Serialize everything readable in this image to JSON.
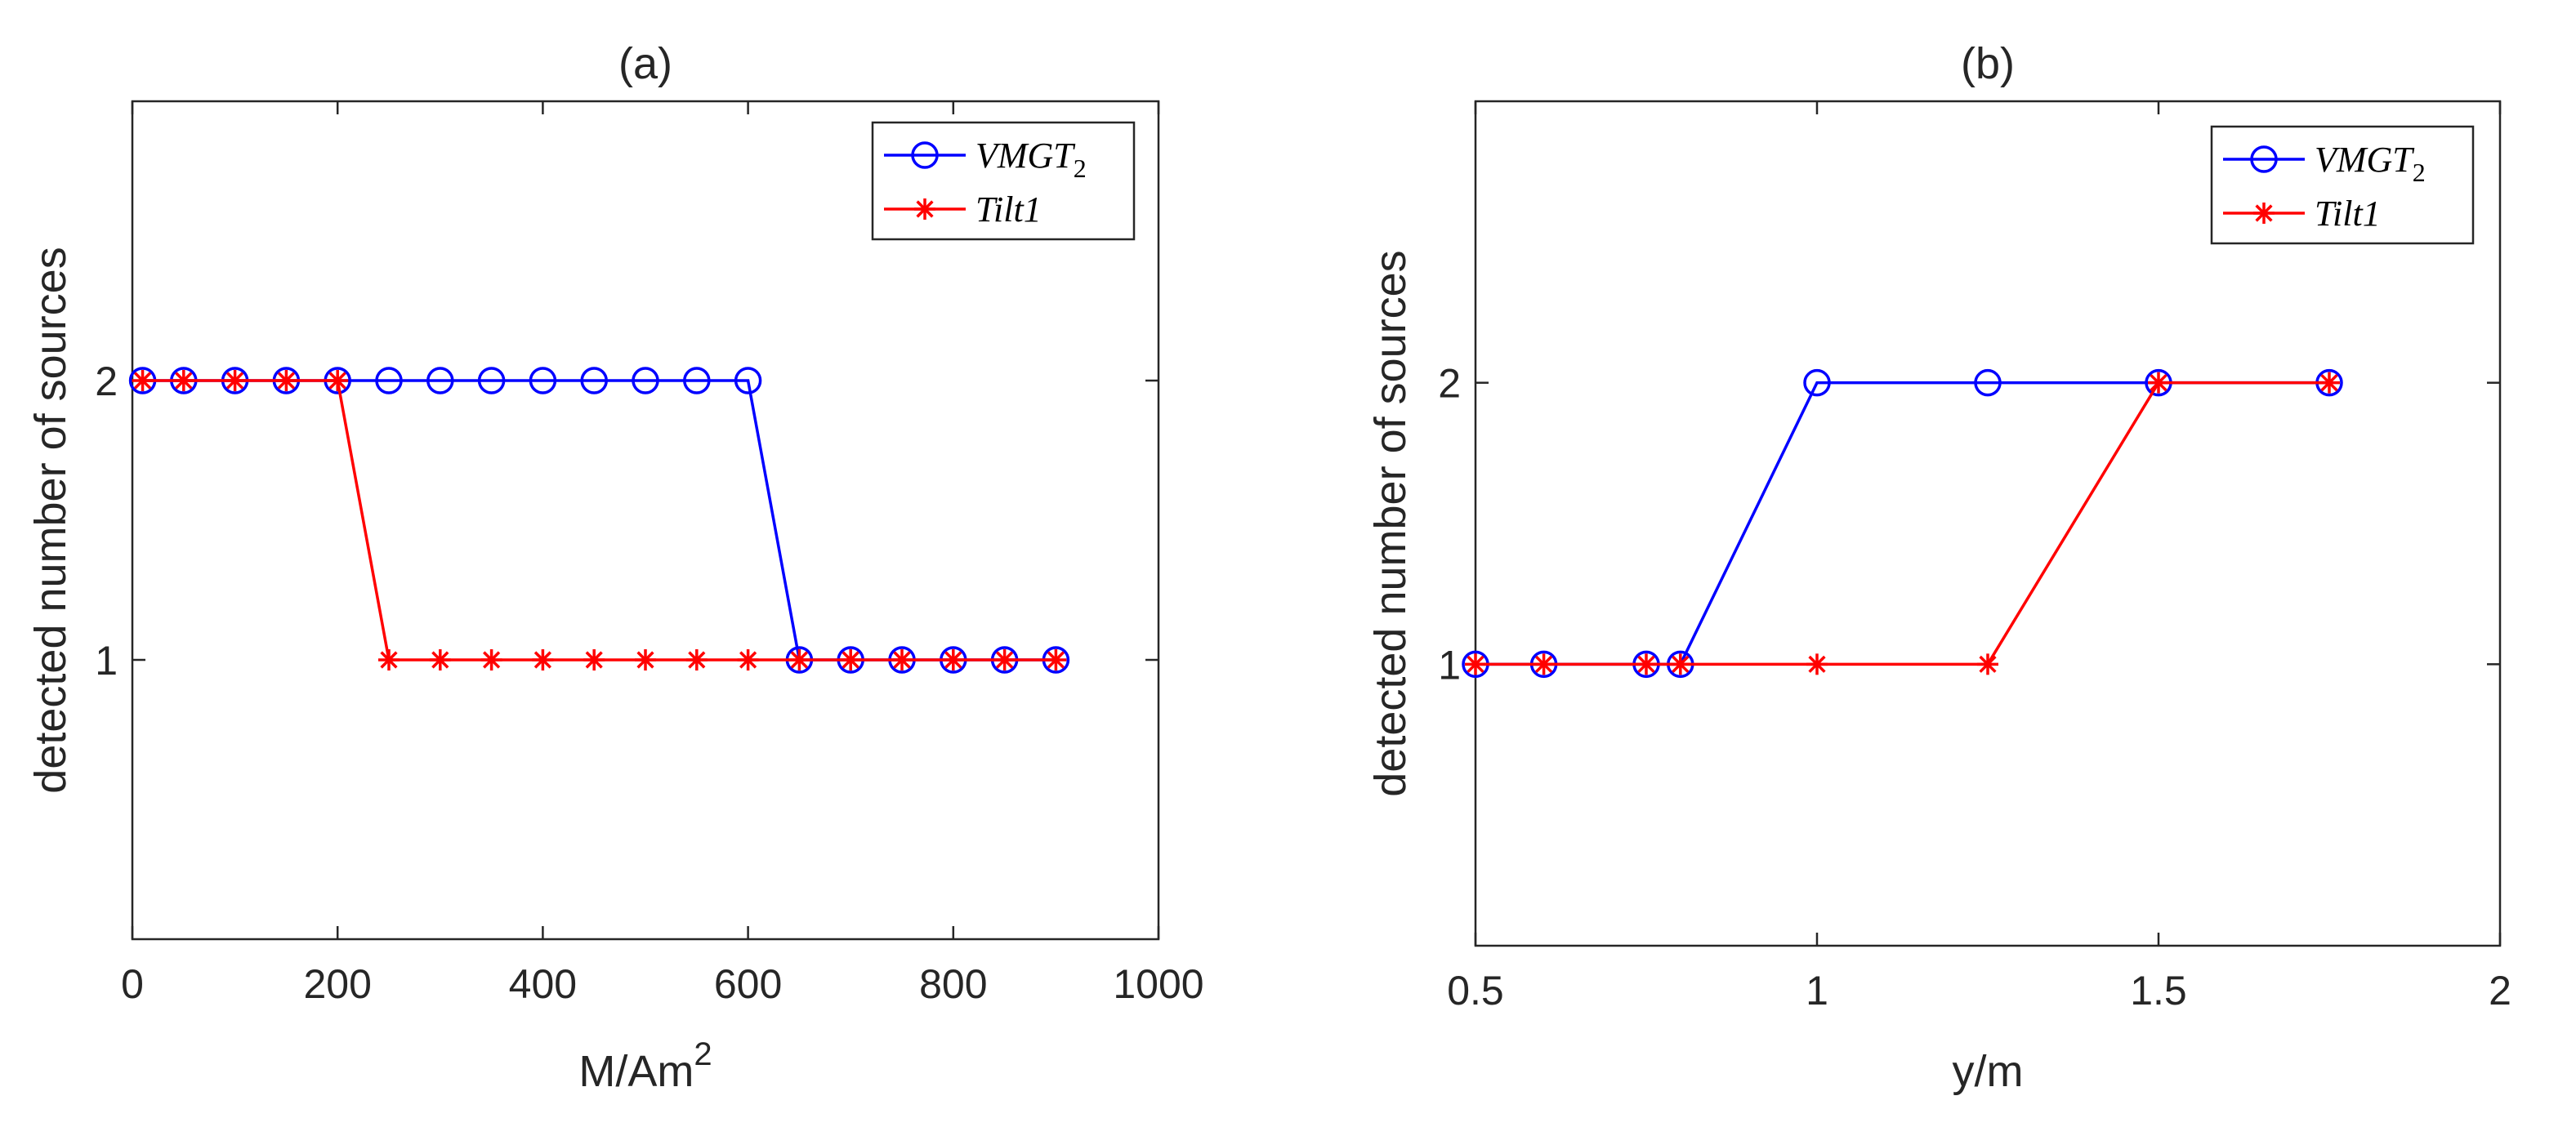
{
  "colors": {
    "series_1": "#0000ff",
    "series_2": "#ff0000",
    "axes": "#262626",
    "background": "#ffffff"
  },
  "chart_data": [
    {
      "type": "line",
      "title": "(a)",
      "xlabel": "M/Am",
      "xlabel_superscript": "2",
      "ylabel": "detected number of sources",
      "xlim": [
        0,
        1000
      ],
      "ylim": [
        0,
        3
      ],
      "xticks": [
        0,
        200,
        400,
        600,
        800,
        1000
      ],
      "xtick_labels": [
        "0",
        "200",
        "400",
        "600",
        "800",
        "1000"
      ],
      "yticks": [
        1,
        2
      ],
      "ytick_labels": [
        "1",
        "2"
      ],
      "legend_position": "top-right",
      "series": [
        {
          "name": "VMGT",
          "name_subscript": "2",
          "marker": "circle",
          "color": "#0000ff",
          "x": [
            10,
            50,
            100,
            150,
            200,
            250,
            300,
            350,
            400,
            450,
            500,
            550,
            600,
            650,
            700,
            750,
            800,
            850,
            900
          ],
          "y": [
            2,
            2,
            2,
            2,
            2,
            2,
            2,
            2,
            2,
            2,
            2,
            2,
            2,
            1,
            1,
            1,
            1,
            1,
            1
          ]
        },
        {
          "name": "Tilt1",
          "name_subscript": "",
          "marker": "asterisk",
          "color": "#ff0000",
          "x": [
            10,
            50,
            100,
            150,
            200,
            250,
            300,
            350,
            400,
            450,
            500,
            550,
            600,
            650,
            700,
            750,
            800,
            850,
            900
          ],
          "y": [
            2,
            2,
            2,
            2,
            2,
            1,
            1,
            1,
            1,
            1,
            1,
            1,
            1,
            1,
            1,
            1,
            1,
            1,
            1
          ]
        }
      ]
    },
    {
      "type": "line",
      "title": "(b)",
      "xlabel": "y/m",
      "xlabel_superscript": "",
      "ylabel": "detected number of sources",
      "xlim": [
        0.5,
        2
      ],
      "ylim": [
        0,
        3
      ],
      "xticks": [
        0.5,
        1,
        1.5,
        2
      ],
      "xtick_labels": [
        "0.5",
        "1",
        "1.5",
        "2"
      ],
      "yticks": [
        1,
        2
      ],
      "ytick_labels": [
        "1",
        "2"
      ],
      "legend_position": "top-right",
      "series": [
        {
          "name": "VMGT",
          "name_subscript": "2",
          "marker": "circle",
          "color": "#0000ff",
          "x": [
            0.5,
            0.6,
            0.75,
            0.8,
            1,
            1.25,
            1.5,
            1.75
          ],
          "y": [
            1,
            1,
            1,
            1,
            2,
            2,
            2,
            2
          ]
        },
        {
          "name": "Tilt1",
          "name_subscript": "",
          "marker": "asterisk",
          "color": "#ff0000",
          "x": [
            0.5,
            0.6,
            0.75,
            0.8,
            1,
            1.25,
            1.5,
            1.75
          ],
          "y": [
            1,
            1,
            1,
            1,
            1,
            1,
            2,
            2
          ]
        }
      ]
    }
  ]
}
